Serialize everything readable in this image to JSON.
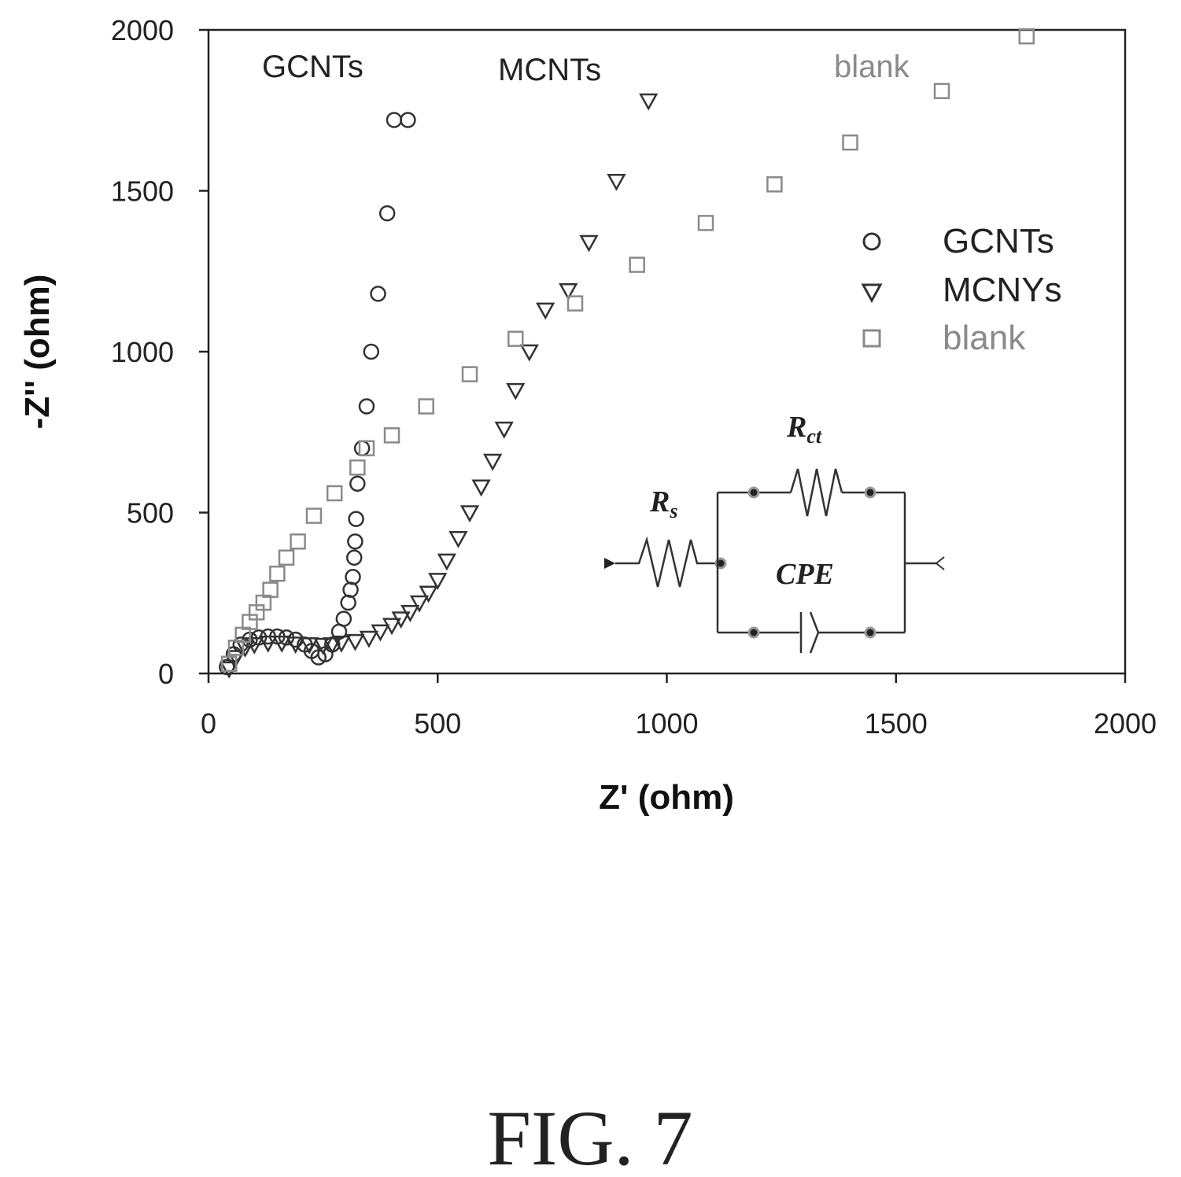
{
  "chart_data": {
    "type": "scatter",
    "xlabel": "Z' (ohm)",
    "ylabel": "-Z'' (ohm)",
    "xlim": [
      0,
      2000
    ],
    "ylim": [
      0,
      2000
    ],
    "xticks": [
      0,
      500,
      1000,
      1500,
      2000
    ],
    "yticks": [
      0,
      500,
      1000,
      1500,
      2000
    ],
    "grid": false,
    "legend_position": "right",
    "legend": [
      "GCNTs",
      "MCNYs",
      "blank"
    ],
    "annotations": [
      "GCNTs",
      "MCNTs",
      "blank"
    ],
    "series": [
      {
        "name": "GCNTs",
        "marker": "circle",
        "color": "#333333",
        "x": [
          40,
          55,
          70,
          90,
          110,
          130,
          150,
          170,
          190,
          210,
          225,
          240,
          255,
          270,
          285,
          295,
          305,
          310,
          315,
          318,
          320,
          322,
          325,
          335,
          345,
          355,
          370,
          390,
          405,
          435
        ],
        "y": [
          20,
          60,
          90,
          105,
          112,
          115,
          115,
          112,
          105,
          90,
          70,
          50,
          60,
          90,
          130,
          170,
          220,
          260,
          300,
          360,
          410,
          480,
          590,
          700,
          830,
          1000,
          1180,
          1430,
          1720,
          1720
        ]
      },
      {
        "name": "MCNYs",
        "marker": "triangle-down",
        "color": "#333333",
        "x": [
          45,
          60,
          80,
          100,
          130,
          160,
          190,
          220,
          250,
          270,
          290,
          320,
          350,
          375,
          400,
          420,
          440,
          460,
          480,
          500,
          520,
          545,
          570,
          595,
          620,
          645,
          670,
          700,
          735,
          785,
          830,
          890,
          960
        ],
        "y": [
          15,
          50,
          80,
          90,
          95,
          95,
          92,
          90,
          88,
          90,
          95,
          100,
          110,
          130,
          150,
          170,
          190,
          220,
          250,
          290,
          350,
          420,
          500,
          580,
          660,
          760,
          880,
          1000,
          1130,
          1190,
          1340,
          1530,
          1780
        ]
      },
      {
        "name": "blank",
        "marker": "square",
        "color": "#8a8a8a",
        "x": [
          45,
          60,
          75,
          90,
          105,
          120,
          135,
          150,
          170,
          195,
          230,
          275,
          325,
          345,
          400,
          475,
          570,
          670,
          800,
          935,
          1085,
          1235,
          1400,
          1600,
          1785
        ],
        "y": [
          30,
          80,
          120,
          160,
          190,
          220,
          260,
          310,
          360,
          410,
          490,
          560,
          640,
          700,
          740,
          830,
          930,
          1040,
          1150,
          1270,
          1400,
          1520,
          1650,
          1810,
          1980
        ]
      }
    ]
  },
  "inset_circuit": {
    "components": [
      "Rs",
      "Rct",
      "CPE"
    ],
    "rs_label": "R",
    "rs_sub": "s",
    "rct_label": "R",
    "rct_sub": "ct",
    "cpe_label": "CPE"
  },
  "caption": "FIG. 7"
}
